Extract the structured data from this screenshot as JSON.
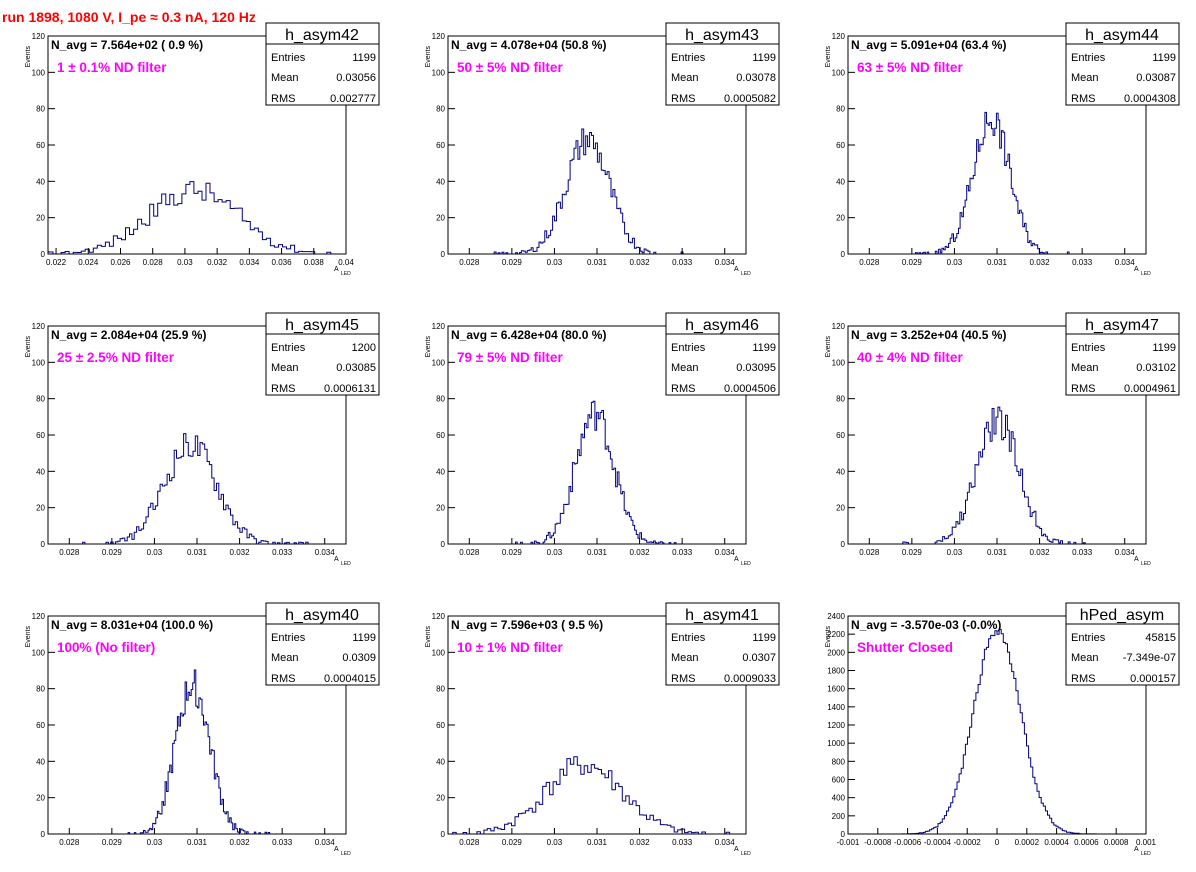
{
  "header": {
    "title": "run 1898,  1080 V, I_pe ≈ 0.3 nA, 120 Hz"
  },
  "axis_labels": {
    "y": "Events",
    "x": "A",
    "x_sub": "LED"
  },
  "stats_labels": {
    "entries": "Entries",
    "mean": "Mean",
    "rms": "RMS"
  },
  "chart_data": [
    {
      "type": "bar",
      "name": "h_asym42",
      "navg_text": "N_avg = 7.564e+02 ( 0.9 %)",
      "filter_text": "1 ± 0.1% ND filter",
      "stats": {
        "entries": "1199",
        "mean": "0.03056",
        "rms": "0.002777"
      },
      "xlim": [
        0.0215,
        0.04
      ],
      "ylim": [
        0,
        120
      ],
      "xticks": [
        0.022,
        0.024,
        0.026,
        0.028,
        0.03,
        0.032,
        0.034,
        0.036,
        0.038,
        0.04
      ],
      "xtick_labels": [
        "0.022",
        "0.024",
        "0.026",
        "0.028",
        "0.03",
        "0.032",
        "0.034",
        "0.036",
        "0.038",
        "0.04"
      ],
      "yticks": [
        0,
        20,
        40,
        60,
        80,
        100,
        120
      ],
      "dist": {
        "mean": 0.03056,
        "sigma": 0.002777,
        "peak": 35,
        "bins": 100,
        "seed": 42
      }
    },
    {
      "type": "bar",
      "name": "h_asym43",
      "navg_text": "N_avg = 4.078e+04 (50.8 %)",
      "filter_text": "50 ± 5% ND filter",
      "stats": {
        "entries": "1199",
        "mean": "0.03078",
        "rms": "0.0005082"
      },
      "xlim": [
        0.0275,
        0.0345
      ],
      "ylim": [
        0,
        120
      ],
      "xticks": [
        0.028,
        0.029,
        0.03,
        0.031,
        0.032,
        0.033,
        0.034
      ],
      "xtick_labels": [
        "0.028",
        "0.029",
        "0.03",
        "0.031",
        "0.032",
        "0.033",
        "0.034"
      ],
      "yticks": [
        0,
        20,
        40,
        60,
        80,
        100,
        120
      ],
      "dist": {
        "mean": 0.03078,
        "sigma": 0.0005082,
        "peak": 63,
        "bins": 100,
        "seed": 43
      }
    },
    {
      "type": "bar",
      "name": "h_asym44",
      "navg_text": "N_avg = 5.091e+04 (63.4 %)",
      "filter_text": "63 ± 5% ND filter",
      "stats": {
        "entries": "1199",
        "mean": "0.03087",
        "rms": "0.0004308"
      },
      "xlim": [
        0.0275,
        0.0345
      ],
      "ylim": [
        0,
        120
      ],
      "xticks": [
        0.028,
        0.029,
        0.03,
        0.031,
        0.032,
        0.033,
        0.034
      ],
      "xtick_labels": [
        "0.028",
        "0.029",
        "0.03",
        "0.031",
        "0.032",
        "0.033",
        "0.034"
      ],
      "yticks": [
        0,
        20,
        40,
        60,
        80,
        100,
        120
      ],
      "dist": {
        "mean": 0.03087,
        "sigma": 0.0004308,
        "peak": 75,
        "bins": 100,
        "seed": 44
      }
    },
    {
      "type": "bar",
      "name": "h_asym45",
      "navg_text": "N_avg = 2.084e+04 (25.9 %)",
      "filter_text": "25 ± 2.5% ND filter",
      "stats": {
        "entries": "1200",
        "mean": "0.03085",
        "rms": "0.0006131"
      },
      "xlim": [
        0.0275,
        0.0345
      ],
      "ylim": [
        0,
        120
      ],
      "xticks": [
        0.028,
        0.029,
        0.03,
        0.031,
        0.032,
        0.033,
        0.034
      ],
      "xtick_labels": [
        "0.028",
        "0.029",
        "0.03",
        "0.031",
        "0.032",
        "0.033",
        "0.034"
      ],
      "yticks": [
        0,
        20,
        40,
        60,
        80,
        100,
        120
      ],
      "dist": {
        "mean": 0.03085,
        "sigma": 0.0006131,
        "peak": 55,
        "bins": 100,
        "seed": 45
      }
    },
    {
      "type": "bar",
      "name": "h_asym46",
      "navg_text": "N_avg = 6.428e+04 (80.0 %)",
      "filter_text": "79 ± 5% ND filter",
      "stats": {
        "entries": "1199",
        "mean": "0.03095",
        "rms": "0.0004506"
      },
      "xlim": [
        0.0275,
        0.0345
      ],
      "ylim": [
        0,
        120
      ],
      "xticks": [
        0.028,
        0.029,
        0.03,
        0.031,
        0.032,
        0.033,
        0.034
      ],
      "xtick_labels": [
        "0.028",
        "0.029",
        "0.03",
        "0.031",
        "0.032",
        "0.033",
        "0.034"
      ],
      "yticks": [
        0,
        20,
        40,
        60,
        80,
        100,
        120
      ],
      "dist": {
        "mean": 0.03095,
        "sigma": 0.0004506,
        "peak": 72,
        "bins": 100,
        "seed": 46
      }
    },
    {
      "type": "bar",
      "name": "h_asym47",
      "navg_text": "N_avg = 3.252e+04 (40.5 %)",
      "filter_text": "40 ± 4% ND filter",
      "stats": {
        "entries": "1199",
        "mean": "0.03102",
        "rms": "0.0004961"
      },
      "xlim": [
        0.0275,
        0.0345
      ],
      "ylim": [
        0,
        120
      ],
      "xticks": [
        0.028,
        0.029,
        0.03,
        0.031,
        0.032,
        0.033,
        0.034
      ],
      "xtick_labels": [
        "0.028",
        "0.029",
        "0.03",
        "0.031",
        "0.032",
        "0.033",
        "0.034"
      ],
      "yticks": [
        0,
        20,
        40,
        60,
        80,
        100,
        120
      ],
      "dist": {
        "mean": 0.03102,
        "sigma": 0.0004961,
        "peak": 68,
        "bins": 100,
        "seed": 47
      }
    },
    {
      "type": "bar",
      "name": "h_asym40",
      "navg_text": "N_avg = 8.031e+04 (100.0 %)",
      "filter_text": "100% (No filter)",
      "stats": {
        "entries": "1199",
        "mean": "0.0309",
        "rms": "0.0004015"
      },
      "xlim": [
        0.0275,
        0.0345
      ],
      "ylim": [
        0,
        120
      ],
      "xticks": [
        0.028,
        0.029,
        0.03,
        0.031,
        0.032,
        0.033,
        0.034
      ],
      "xtick_labels": [
        "0.028",
        "0.029",
        "0.03",
        "0.031",
        "0.032",
        "0.033",
        "0.034"
      ],
      "yticks": [
        0,
        20,
        40,
        60,
        80,
        100,
        120
      ],
      "dist": {
        "mean": 0.0309,
        "sigma": 0.0004015,
        "peak": 82,
        "bins": 100,
        "seed": 40
      }
    },
    {
      "type": "bar",
      "name": "h_asym41",
      "navg_text": "N_avg = 7.596e+03 ( 9.5 %)",
      "filter_text": "10 ± 1% ND filter",
      "stats": {
        "entries": "1199",
        "mean": "0.0307",
        "rms": "0.0009033"
      },
      "xlim": [
        0.0275,
        0.0345
      ],
      "ylim": [
        0,
        120
      ],
      "xticks": [
        0.028,
        0.029,
        0.03,
        0.031,
        0.032,
        0.033,
        0.034
      ],
      "xtick_labels": [
        "0.028",
        "0.029",
        "0.03",
        "0.031",
        "0.032",
        "0.033",
        "0.034"
      ],
      "yticks": [
        0,
        20,
        40,
        60,
        80,
        100,
        120
      ],
      "dist": {
        "mean": 0.0307,
        "sigma": 0.0009033,
        "peak": 38,
        "bins": 100,
        "seed": 41
      }
    },
    {
      "type": "bar",
      "name": "hPed_asym",
      "navg_text": "N_avg = -3.570e-03 (-0.0%)",
      "filter_text": "Shutter Closed",
      "stats": {
        "entries": "45815",
        "mean": "-7.349e-07",
        "rms": "0.000157"
      },
      "xlim": [
        -0.001,
        0.001
      ],
      "ylim": [
        0,
        2400
      ],
      "xticks": [
        -0.001,
        -0.0008,
        -0.0006,
        -0.0004,
        -0.0002,
        0,
        0.0002,
        0.0004,
        0.0006,
        0.0008,
        0.001
      ],
      "xtick_labels": [
        "-0.001",
        "-0.0008",
        "-0.0006",
        "-0.0004",
        "-0.0002",
        "0",
        "0.0002",
        "0.0004",
        "0.0006",
        "0.0008",
        "0.001"
      ],
      "yticks": [
        0,
        200,
        400,
        600,
        800,
        1000,
        1200,
        1400,
        1600,
        1800,
        2000,
        2200,
        2400
      ],
      "dist": {
        "mean": 0.0,
        "sigma": 0.000157,
        "peak": 2250,
        "bins": 100,
        "seed": 99
      }
    }
  ]
}
